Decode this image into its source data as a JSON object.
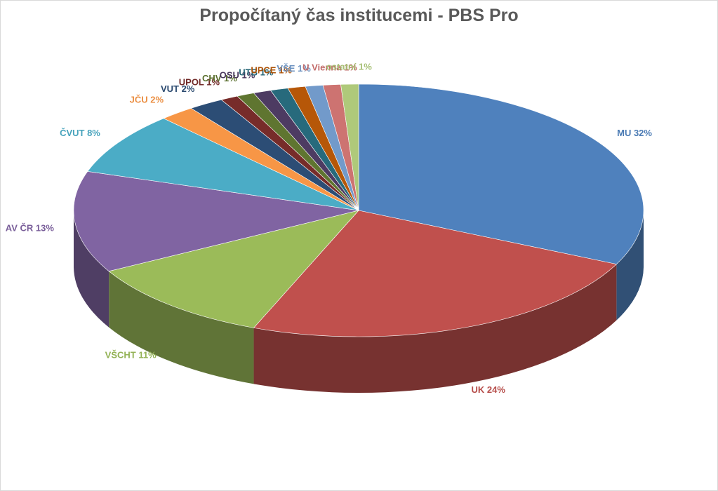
{
  "chart_data": {
    "type": "pie",
    "title": "Propočítaný čas institucemi - PBS Pro",
    "slices": [
      {
        "name": "MU",
        "label": "MU 32%",
        "value": 32,
        "color": "#4f81bd"
      },
      {
        "name": "UK",
        "label": "UK 24%",
        "value": 24,
        "color": "#c0504d"
      },
      {
        "name": "VŠCHT",
        "label": "VŠCHT 11%",
        "value": 11,
        "color": "#9bbb59"
      },
      {
        "name": "AV ČR",
        "label": "AV ČR 13%",
        "value": 13,
        "color": "#8064a2"
      },
      {
        "name": "ČVUT",
        "label": "ČVUT 8%",
        "value": 8,
        "color": "#4bacc6"
      },
      {
        "name": "JČU",
        "label": "JČU 2%",
        "value": 2,
        "color": "#f79646"
      },
      {
        "name": "VUT",
        "label": "VUT 2%",
        "value": 2,
        "color": "#2c4d75"
      },
      {
        "name": "UPOL",
        "label": "UPOL 1%",
        "value": 1,
        "color": "#772c2a"
      },
      {
        "name": "CHV",
        "label": "CHV 1%",
        "value": 1,
        "color": "#5f7530"
      },
      {
        "name": "OSU",
        "label": "OSU 1%",
        "value": 1,
        "color": "#4d3b62"
      },
      {
        "name": "UTB",
        "label": "UTB 1%",
        "value": 1,
        "color": "#276a7c"
      },
      {
        "name": "UPCE",
        "label": "UPCE 1%",
        "value": 1,
        "color": "#b65708"
      },
      {
        "name": "VŠE",
        "label": "VŠE 1%",
        "value": 1,
        "color": "#729aca"
      },
      {
        "name": "U Vienna",
        "label": "U Vienna 1%",
        "value": 1,
        "color": "#cd7371"
      },
      {
        "name": "ostatní",
        "label": "ostatní 1%",
        "value": 1,
        "color": "#afc97a"
      }
    ],
    "legend": "none",
    "labels": "outside-end"
  }
}
